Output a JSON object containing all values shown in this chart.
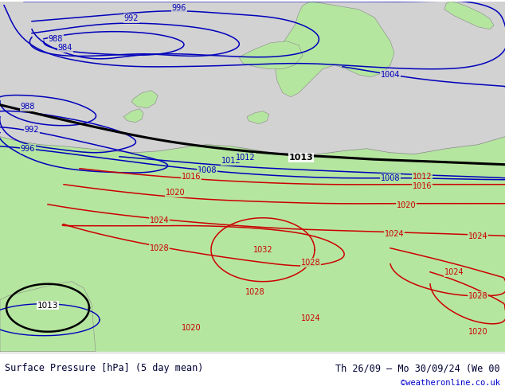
{
  "title_left": "Surface Pressure [hPa] (5 day mean)",
  "title_right": "Th 26/09 – Mo 30/09/24 (We 00",
  "title_right2": "©weatheronline.co.uk",
  "ocean_color": "#d2d2d2",
  "land_color": "#b5e6a0",
  "coast_color": "#888888",
  "blue_color": "#0000bb",
  "red_color": "#cc0000",
  "black_color": "#000000",
  "text_dark": "#000033",
  "link_color": "#0000cc",
  "figsize": [
    6.34,
    4.9
  ],
  "dpi": 100
}
